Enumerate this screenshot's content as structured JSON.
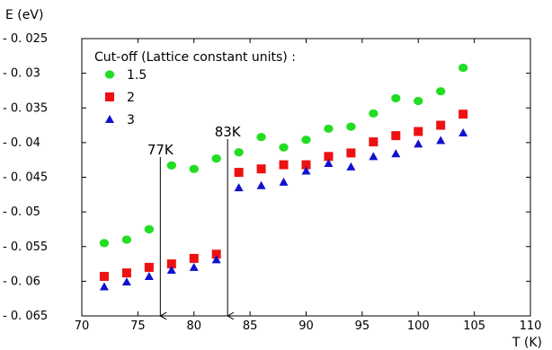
{
  "chart_data": {
    "type": "scatter",
    "title": "",
    "xlabel": "T (K)",
    "ylabel": "E (eV)",
    "xlim": [
      70,
      110
    ],
    "ylim": [
      -0.065,
      -0.025
    ],
    "x_ticks": [
      70,
      75,
      80,
      85,
      90,
      95,
      100,
      105,
      110
    ],
    "y_ticks": [
      -0.025,
      -0.03,
      -0.035,
      -0.04,
      -0.045,
      -0.05,
      -0.055,
      -0.06,
      -0.065
    ],
    "x_tick_labels": [
      "70",
      "75",
      "80",
      "85",
      "90",
      "95",
      "100",
      "105",
      "110"
    ],
    "y_tick_labels": [
      "- 0. 025",
      "- 0. 03",
      "- 0. 035",
      "- 0. 04",
      "- 0. 045",
      "- 0. 05",
      "- 0. 055",
      "- 0. 06",
      "- 0. 065"
    ],
    "grid": false,
    "legend": {
      "title": "Cut-off (Lattice constant units) :",
      "position": "top-left"
    },
    "x": [
      72,
      74,
      76,
      78,
      80,
      82,
      84,
      86,
      88,
      90,
      92,
      94,
      96,
      98,
      100,
      102,
      104
    ],
    "series": [
      {
        "name": "1.5",
        "marker": "circle",
        "color": "#22dd22",
        "values": [
          -0.0545,
          -0.054,
          -0.0525,
          -0.0433,
          -0.0438,
          -0.0423,
          -0.0414,
          -0.0392,
          -0.0407,
          -0.0396,
          -0.038,
          -0.0377,
          -0.0358,
          -0.0336,
          -0.034,
          -0.0326,
          -0.0292
        ]
      },
      {
        "name": "2",
        "marker": "square",
        "color": "#ee1111",
        "values": [
          -0.0593,
          -0.0588,
          -0.058,
          -0.0575,
          -0.0567,
          -0.0561,
          -0.0443,
          -0.0438,
          -0.0432,
          -0.0432,
          -0.042,
          -0.0415,
          -0.0399,
          -0.039,
          -0.0384,
          -0.0375,
          -0.0359
        ]
      },
      {
        "name": "3",
        "marker": "triangle",
        "color": "#1111cc",
        "values": [
          -0.0608,
          -0.0601,
          -0.0593,
          -0.0584,
          -0.058,
          -0.0569,
          -0.0465,
          -0.0462,
          -0.0457,
          -0.0441,
          -0.043,
          -0.0435,
          -0.042,
          -0.0416,
          -0.0402,
          -0.0397,
          -0.0386
        ]
      }
    ],
    "annotations": [
      {
        "label": "77K",
        "x": 77
      },
      {
        "label": "83K",
        "x": 83
      }
    ]
  }
}
